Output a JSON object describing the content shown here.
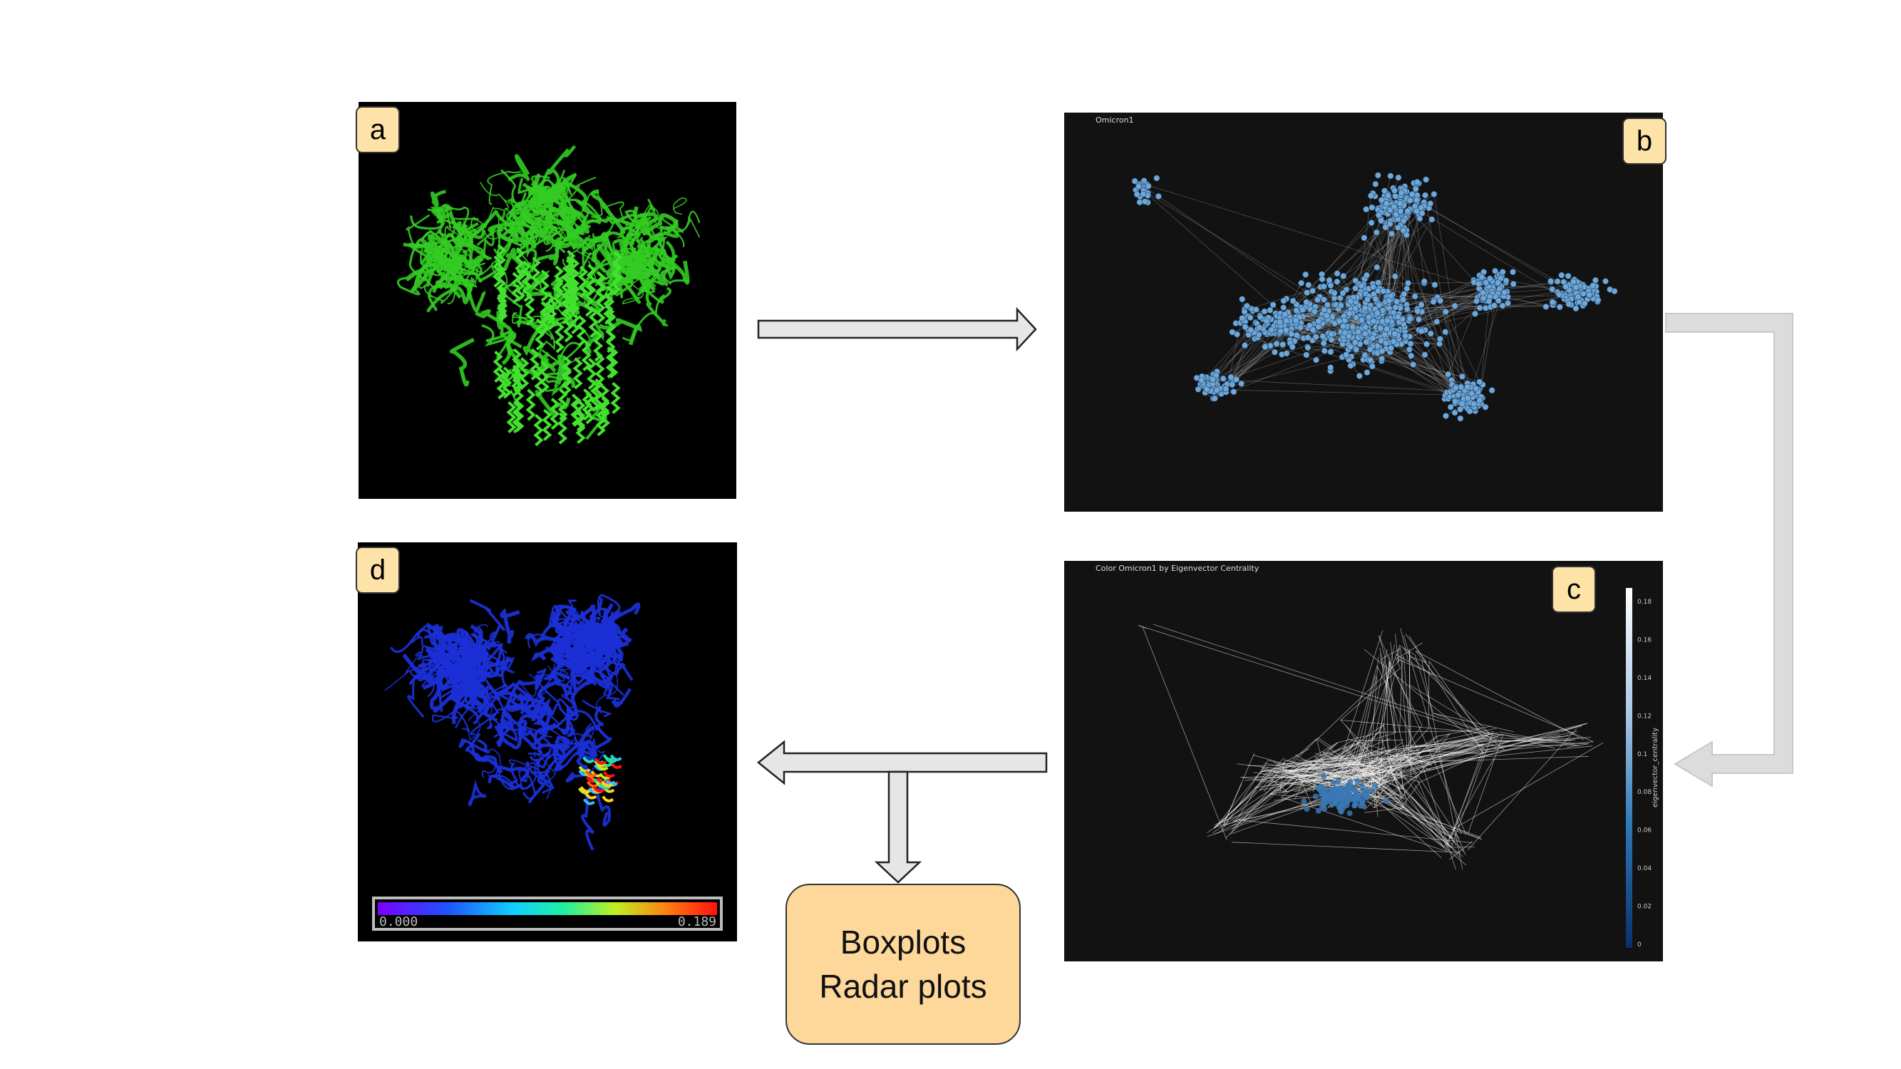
{
  "panels": {
    "a": {
      "badge": "a"
    },
    "b": {
      "badge": "b",
      "title": "Omicron1"
    },
    "c": {
      "badge": "c",
      "title": "Color Omicron1 by Eigenvector Centrality",
      "colorbar_label": "eigenvector_centrality",
      "colorbar_ticks": [
        "0.18",
        "0.16",
        "0.14",
        "0.12",
        "0.1",
        "0.08",
        "0.06",
        "0.04",
        "0.02",
        "0"
      ]
    },
    "d": {
      "badge": "d",
      "scale_min": "0.000",
      "scale_max": "0.189"
    }
  },
  "output_box": {
    "line1": "Boxplots",
    "line2": "Radar plots"
  },
  "colors": {
    "protein_green": "#33cc22",
    "protein_blue": "#1a2fd6",
    "node_blue": "#6fa8d8",
    "badge_fill": "#fde3a7",
    "box_fill": "#fdd89a",
    "arrow_fill": "#e6e6e6"
  }
}
